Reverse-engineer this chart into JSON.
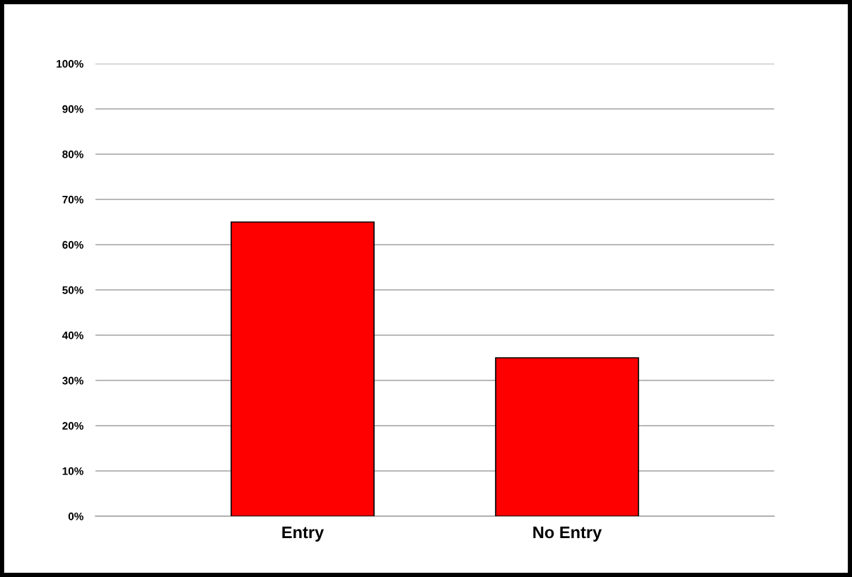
{
  "chart_data": {
    "type": "bar",
    "categories": [
      "Entry",
      "No Entry"
    ],
    "values": [
      65,
      35
    ],
    "color": "#ff0000",
    "ylim": [
      0,
      100
    ],
    "yticks": [
      {
        "value": 0,
        "label": "0%"
      },
      {
        "value": 10,
        "label": "10%"
      },
      {
        "value": 20,
        "label": "20%"
      },
      {
        "value": 30,
        "label": "30%"
      },
      {
        "value": 40,
        "label": "40%"
      },
      {
        "value": 50,
        "label": "50%"
      },
      {
        "value": 60,
        "label": "60%"
      },
      {
        "value": 70,
        "label": "70%"
      },
      {
        "value": 80,
        "label": "80%"
      },
      {
        "value": 90,
        "label": "90%"
      },
      {
        "value": 100,
        "label": "100%"
      }
    ],
    "grid": "y"
  }
}
